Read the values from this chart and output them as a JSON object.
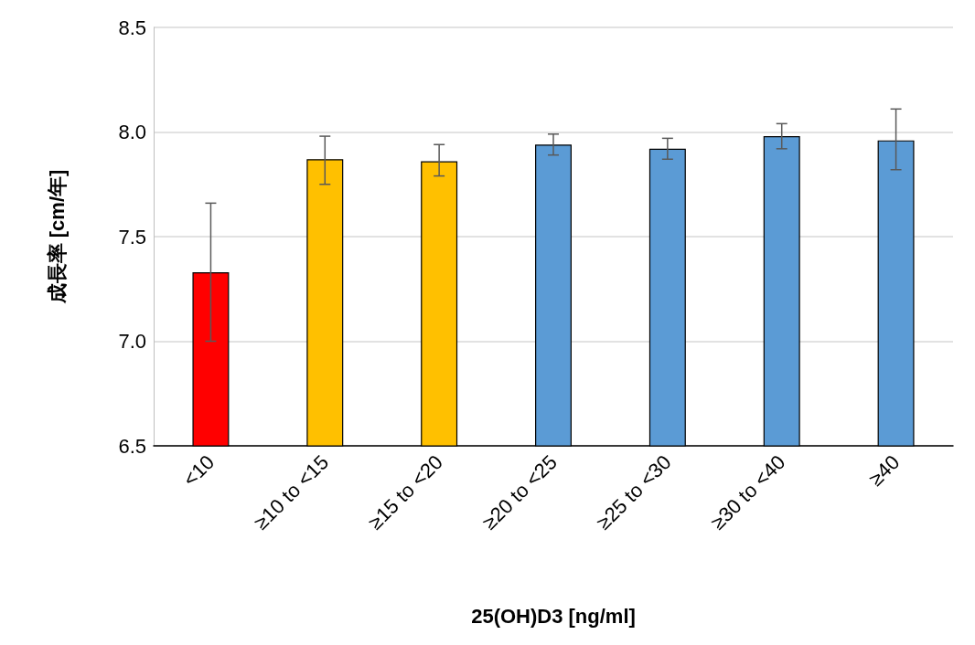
{
  "chart_data": {
    "type": "bar",
    "xlabel": "25(OH)D3 [ng/ml]",
    "ylabel": "成長率 [cm/年]",
    "categories": [
      "<10",
      "≥10 to <15",
      "≥15 to <20",
      "≥20 to <25",
      "≥25 to <30",
      "≥30 to <40",
      "≥40"
    ],
    "values": [
      7.33,
      7.87,
      7.86,
      7.94,
      7.92,
      7.98,
      7.96
    ],
    "colors": [
      "#ff0000",
      "#ffc000",
      "#ffc000",
      "#5b9bd5",
      "#5b9bd5",
      "#5b9bd5",
      "#5b9bd5"
    ],
    "errors": [
      [
        7.0,
        7.66
      ],
      [
        7.75,
        7.98
      ],
      [
        7.79,
        7.94
      ],
      [
        7.89,
        7.99
      ],
      [
        7.87,
        7.97
      ],
      [
        7.92,
        8.04
      ],
      [
        7.82,
        8.11
      ]
    ],
    "ylim": [
      6.5,
      8.5
    ],
    "yticks": [
      6.5,
      {
        "value": 7,
        "label": "7.0"
      },
      7.5,
      {
        "value": 8,
        "label": "8.0"
      },
      8.5
    ],
    "grid": "y"
  }
}
